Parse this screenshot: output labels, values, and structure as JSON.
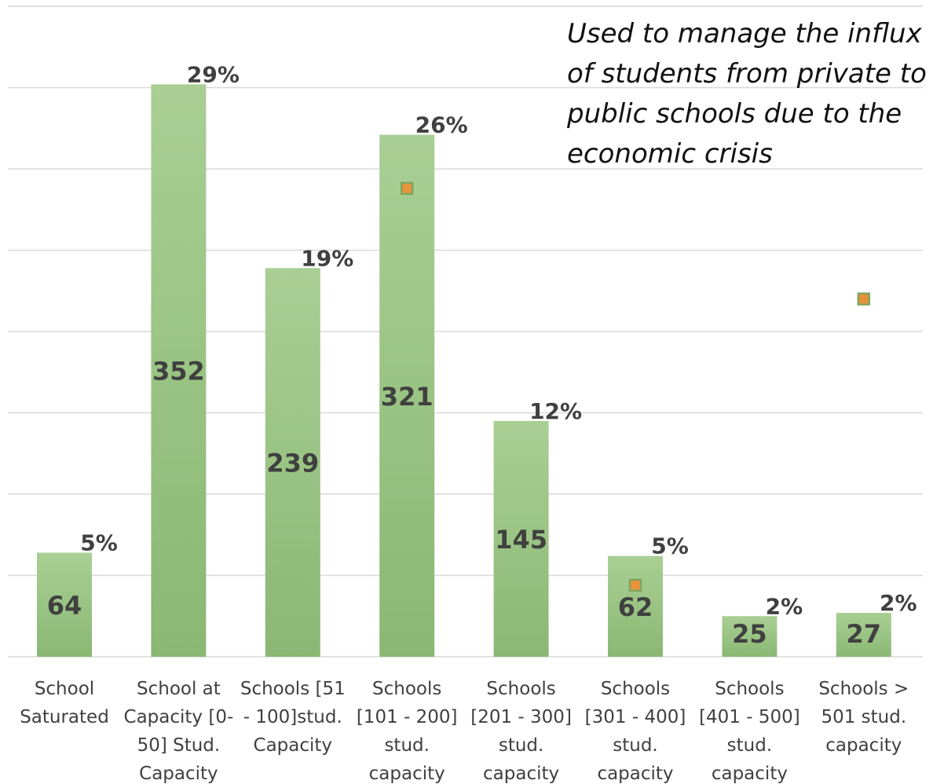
{
  "chart_data": {
    "type": "bar",
    "categories": [
      [
        "School",
        "Saturated"
      ],
      [
        "School at",
        "Capacity [0-",
        "50] Stud.",
        "Capacity"
      ],
      [
        "Schools [51",
        "- 100]stud.",
        "Capacity"
      ],
      [
        "Schools",
        "[101 - 200]",
        "stud.",
        "capacity"
      ],
      [
        "Schools",
        "[201 - 300]",
        "stud.",
        "capacity"
      ],
      [
        "Schools",
        "[301 - 400]",
        "stud.",
        "capacity"
      ],
      [
        "Schools",
        "[401 - 500]",
        "stud.",
        "capacity"
      ],
      [
        "Schools >",
        "501 stud.",
        "capacity"
      ]
    ],
    "values": [
      64,
      352,
      239,
      321,
      145,
      62,
      25,
      27
    ],
    "value_labels": [
      "64",
      "352",
      "239",
      "321",
      "145",
      "62",
      "25",
      "27"
    ],
    "percent_labels": [
      "5%",
      "29%",
      "19%",
      "26%",
      "12%",
      "5%",
      "2%",
      "2%"
    ],
    "markers": [
      {
        "category_index": 3,
        "value": 288
      },
      {
        "category_index": 5,
        "value": 44
      },
      {
        "category_index": 7,
        "value": 220
      }
    ],
    "ylim": [
      0,
      400
    ],
    "grid": true,
    "colors": {
      "bar_top": "#a9cf94",
      "bar_bottom": "#8ab873",
      "marker_fill": "#e8923a",
      "marker_edge": "#7fa55e",
      "grid": "#d9d9d9",
      "text": "#404040"
    }
  },
  "annotation": {
    "lines": [
      "Used to manage the influx",
      "of students from private to",
      "public schools due to the",
      "economic crisis"
    ]
  }
}
